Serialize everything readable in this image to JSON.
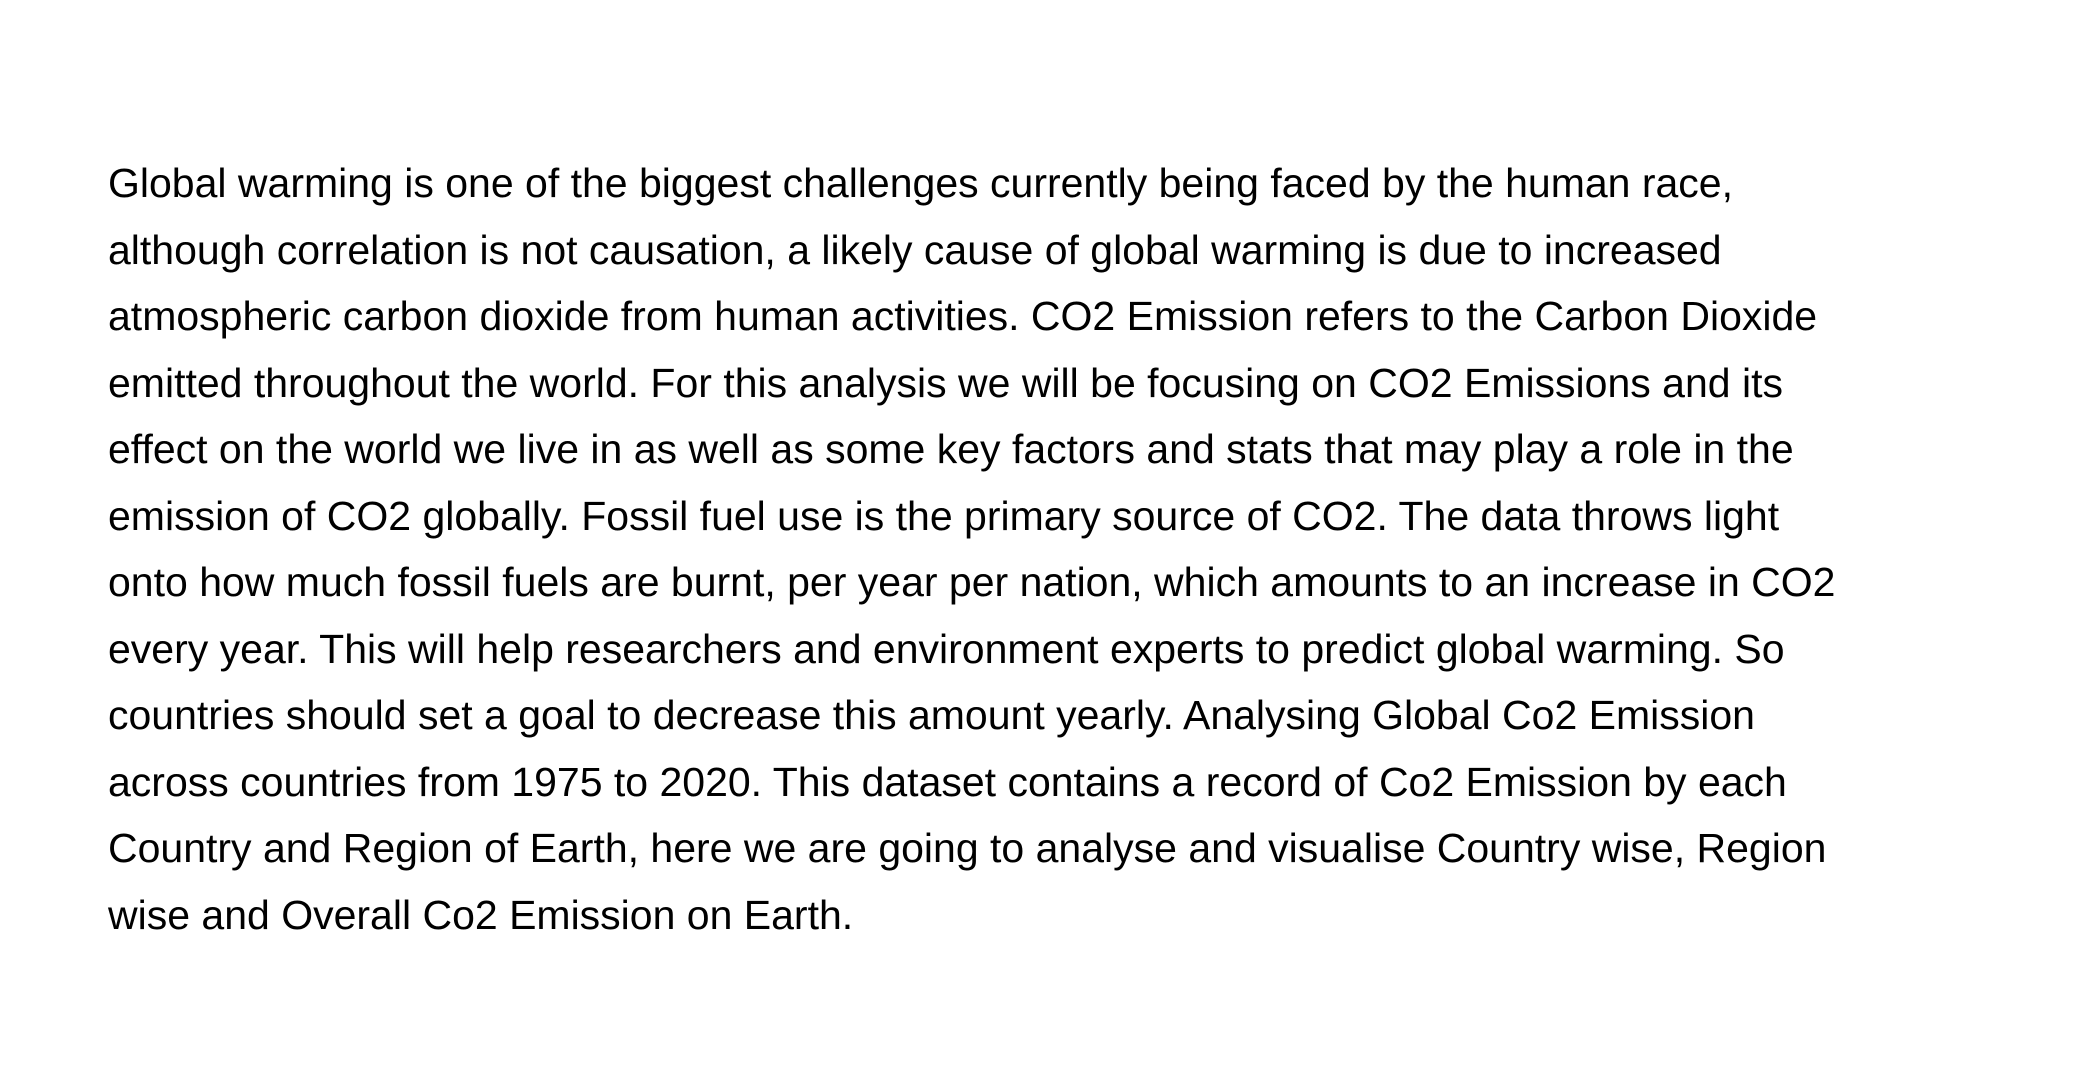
{
  "document": {
    "paragraph_lines": [
      "Global warming is one of the biggest challenges currently being faced by the human race,",
      "although correlation is not causation, a likely cause of global warming is due to increased",
      "atmospheric carbon dioxide from human activities. CO2 Emission refers to the Carbon Dioxide",
      "emitted throughout the world. For this analysis we will be focusing on CO2 Emissions and its",
      "effect on the world we live in as well as some key factors and stats that may play a role in the",
      "emission of CO2 globally. Fossil fuel use is the primary source of CO2. The data throws light",
      "onto how much fossil fuels are burnt, per year per nation, which amounts to an increase in CO2",
      "every year. This will help researchers and environment experts to predict global warming. So",
      "countries should set a goal to decrease this amount yearly. Analysing Global Co2 Emission",
      "across countries from 1975 to 2020. This dataset contains a record of Co2 Emission by each",
      "Country and Region of Earth, here we are going to analyse and visualise Country wise, Region",
      "wise and Overall Co2 Emission on Earth."
    ]
  }
}
